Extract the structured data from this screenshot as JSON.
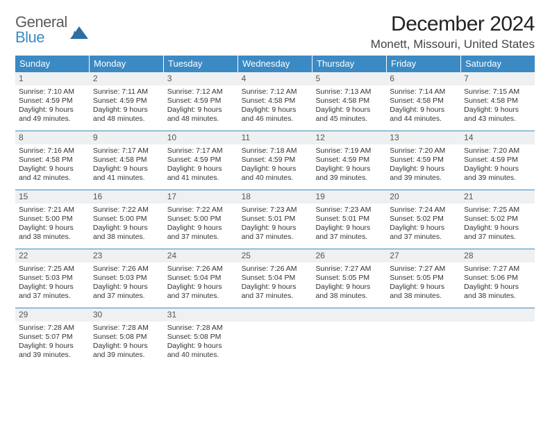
{
  "logo": {
    "general": "General",
    "blue": "Blue",
    "mark_color": "#2e6fa3"
  },
  "title": "December 2024",
  "location": "Monett, Missouri, United States",
  "colors": {
    "header_bg": "#3b8ac4",
    "header_text": "#ffffff",
    "daynum_bg": "#eef0f1",
    "week_divider": "#3b8ac4",
    "body_text": "#333333",
    "page_bg": "#ffffff"
  },
  "typography": {
    "title_fontsize": 30,
    "location_fontsize": 17,
    "weekday_fontsize": 13,
    "daynum_fontsize": 12,
    "cell_fontsize": 10.5
  },
  "weekdays": [
    "Sunday",
    "Monday",
    "Tuesday",
    "Wednesday",
    "Thursday",
    "Friday",
    "Saturday"
  ],
  "weeks": [
    [
      {
        "n": "1",
        "sunrise": "Sunrise: 7:10 AM",
        "sunset": "Sunset: 4:59 PM",
        "daylight": "Daylight: 9 hours and 49 minutes."
      },
      {
        "n": "2",
        "sunrise": "Sunrise: 7:11 AM",
        "sunset": "Sunset: 4:59 PM",
        "daylight": "Daylight: 9 hours and 48 minutes."
      },
      {
        "n": "3",
        "sunrise": "Sunrise: 7:12 AM",
        "sunset": "Sunset: 4:59 PM",
        "daylight": "Daylight: 9 hours and 48 minutes."
      },
      {
        "n": "4",
        "sunrise": "Sunrise: 7:12 AM",
        "sunset": "Sunset: 4:58 PM",
        "daylight": "Daylight: 9 hours and 46 minutes."
      },
      {
        "n": "5",
        "sunrise": "Sunrise: 7:13 AM",
        "sunset": "Sunset: 4:58 PM",
        "daylight": "Daylight: 9 hours and 45 minutes."
      },
      {
        "n": "6",
        "sunrise": "Sunrise: 7:14 AM",
        "sunset": "Sunset: 4:58 PM",
        "daylight": "Daylight: 9 hours and 44 minutes."
      },
      {
        "n": "7",
        "sunrise": "Sunrise: 7:15 AM",
        "sunset": "Sunset: 4:58 PM",
        "daylight": "Daylight: 9 hours and 43 minutes."
      }
    ],
    [
      {
        "n": "8",
        "sunrise": "Sunrise: 7:16 AM",
        "sunset": "Sunset: 4:58 PM",
        "daylight": "Daylight: 9 hours and 42 minutes."
      },
      {
        "n": "9",
        "sunrise": "Sunrise: 7:17 AM",
        "sunset": "Sunset: 4:58 PM",
        "daylight": "Daylight: 9 hours and 41 minutes."
      },
      {
        "n": "10",
        "sunrise": "Sunrise: 7:17 AM",
        "sunset": "Sunset: 4:59 PM",
        "daylight": "Daylight: 9 hours and 41 minutes."
      },
      {
        "n": "11",
        "sunrise": "Sunrise: 7:18 AM",
        "sunset": "Sunset: 4:59 PM",
        "daylight": "Daylight: 9 hours and 40 minutes."
      },
      {
        "n": "12",
        "sunrise": "Sunrise: 7:19 AM",
        "sunset": "Sunset: 4:59 PM",
        "daylight": "Daylight: 9 hours and 39 minutes."
      },
      {
        "n": "13",
        "sunrise": "Sunrise: 7:20 AM",
        "sunset": "Sunset: 4:59 PM",
        "daylight": "Daylight: 9 hours and 39 minutes."
      },
      {
        "n": "14",
        "sunrise": "Sunrise: 7:20 AM",
        "sunset": "Sunset: 4:59 PM",
        "daylight": "Daylight: 9 hours and 39 minutes."
      }
    ],
    [
      {
        "n": "15",
        "sunrise": "Sunrise: 7:21 AM",
        "sunset": "Sunset: 5:00 PM",
        "daylight": "Daylight: 9 hours and 38 minutes."
      },
      {
        "n": "16",
        "sunrise": "Sunrise: 7:22 AM",
        "sunset": "Sunset: 5:00 PM",
        "daylight": "Daylight: 9 hours and 38 minutes."
      },
      {
        "n": "17",
        "sunrise": "Sunrise: 7:22 AM",
        "sunset": "Sunset: 5:00 PM",
        "daylight": "Daylight: 9 hours and 37 minutes."
      },
      {
        "n": "18",
        "sunrise": "Sunrise: 7:23 AM",
        "sunset": "Sunset: 5:01 PM",
        "daylight": "Daylight: 9 hours and 37 minutes."
      },
      {
        "n": "19",
        "sunrise": "Sunrise: 7:23 AM",
        "sunset": "Sunset: 5:01 PM",
        "daylight": "Daylight: 9 hours and 37 minutes."
      },
      {
        "n": "20",
        "sunrise": "Sunrise: 7:24 AM",
        "sunset": "Sunset: 5:02 PM",
        "daylight": "Daylight: 9 hours and 37 minutes."
      },
      {
        "n": "21",
        "sunrise": "Sunrise: 7:25 AM",
        "sunset": "Sunset: 5:02 PM",
        "daylight": "Daylight: 9 hours and 37 minutes."
      }
    ],
    [
      {
        "n": "22",
        "sunrise": "Sunrise: 7:25 AM",
        "sunset": "Sunset: 5:03 PM",
        "daylight": "Daylight: 9 hours and 37 minutes."
      },
      {
        "n": "23",
        "sunrise": "Sunrise: 7:26 AM",
        "sunset": "Sunset: 5:03 PM",
        "daylight": "Daylight: 9 hours and 37 minutes."
      },
      {
        "n": "24",
        "sunrise": "Sunrise: 7:26 AM",
        "sunset": "Sunset: 5:04 PM",
        "daylight": "Daylight: 9 hours and 37 minutes."
      },
      {
        "n": "25",
        "sunrise": "Sunrise: 7:26 AM",
        "sunset": "Sunset: 5:04 PM",
        "daylight": "Daylight: 9 hours and 37 minutes."
      },
      {
        "n": "26",
        "sunrise": "Sunrise: 7:27 AM",
        "sunset": "Sunset: 5:05 PM",
        "daylight": "Daylight: 9 hours and 38 minutes."
      },
      {
        "n": "27",
        "sunrise": "Sunrise: 7:27 AM",
        "sunset": "Sunset: 5:05 PM",
        "daylight": "Daylight: 9 hours and 38 minutes."
      },
      {
        "n": "28",
        "sunrise": "Sunrise: 7:27 AM",
        "sunset": "Sunset: 5:06 PM",
        "daylight": "Daylight: 9 hours and 38 minutes."
      }
    ],
    [
      {
        "n": "29",
        "sunrise": "Sunrise: 7:28 AM",
        "sunset": "Sunset: 5:07 PM",
        "daylight": "Daylight: 9 hours and 39 minutes."
      },
      {
        "n": "30",
        "sunrise": "Sunrise: 7:28 AM",
        "sunset": "Sunset: 5:08 PM",
        "daylight": "Daylight: 9 hours and 39 minutes."
      },
      {
        "n": "31",
        "sunrise": "Sunrise: 7:28 AM",
        "sunset": "Sunset: 5:08 PM",
        "daylight": "Daylight: 9 hours and 40 minutes."
      },
      {
        "empty": true
      },
      {
        "empty": true
      },
      {
        "empty": true
      },
      {
        "empty": true
      }
    ]
  ]
}
